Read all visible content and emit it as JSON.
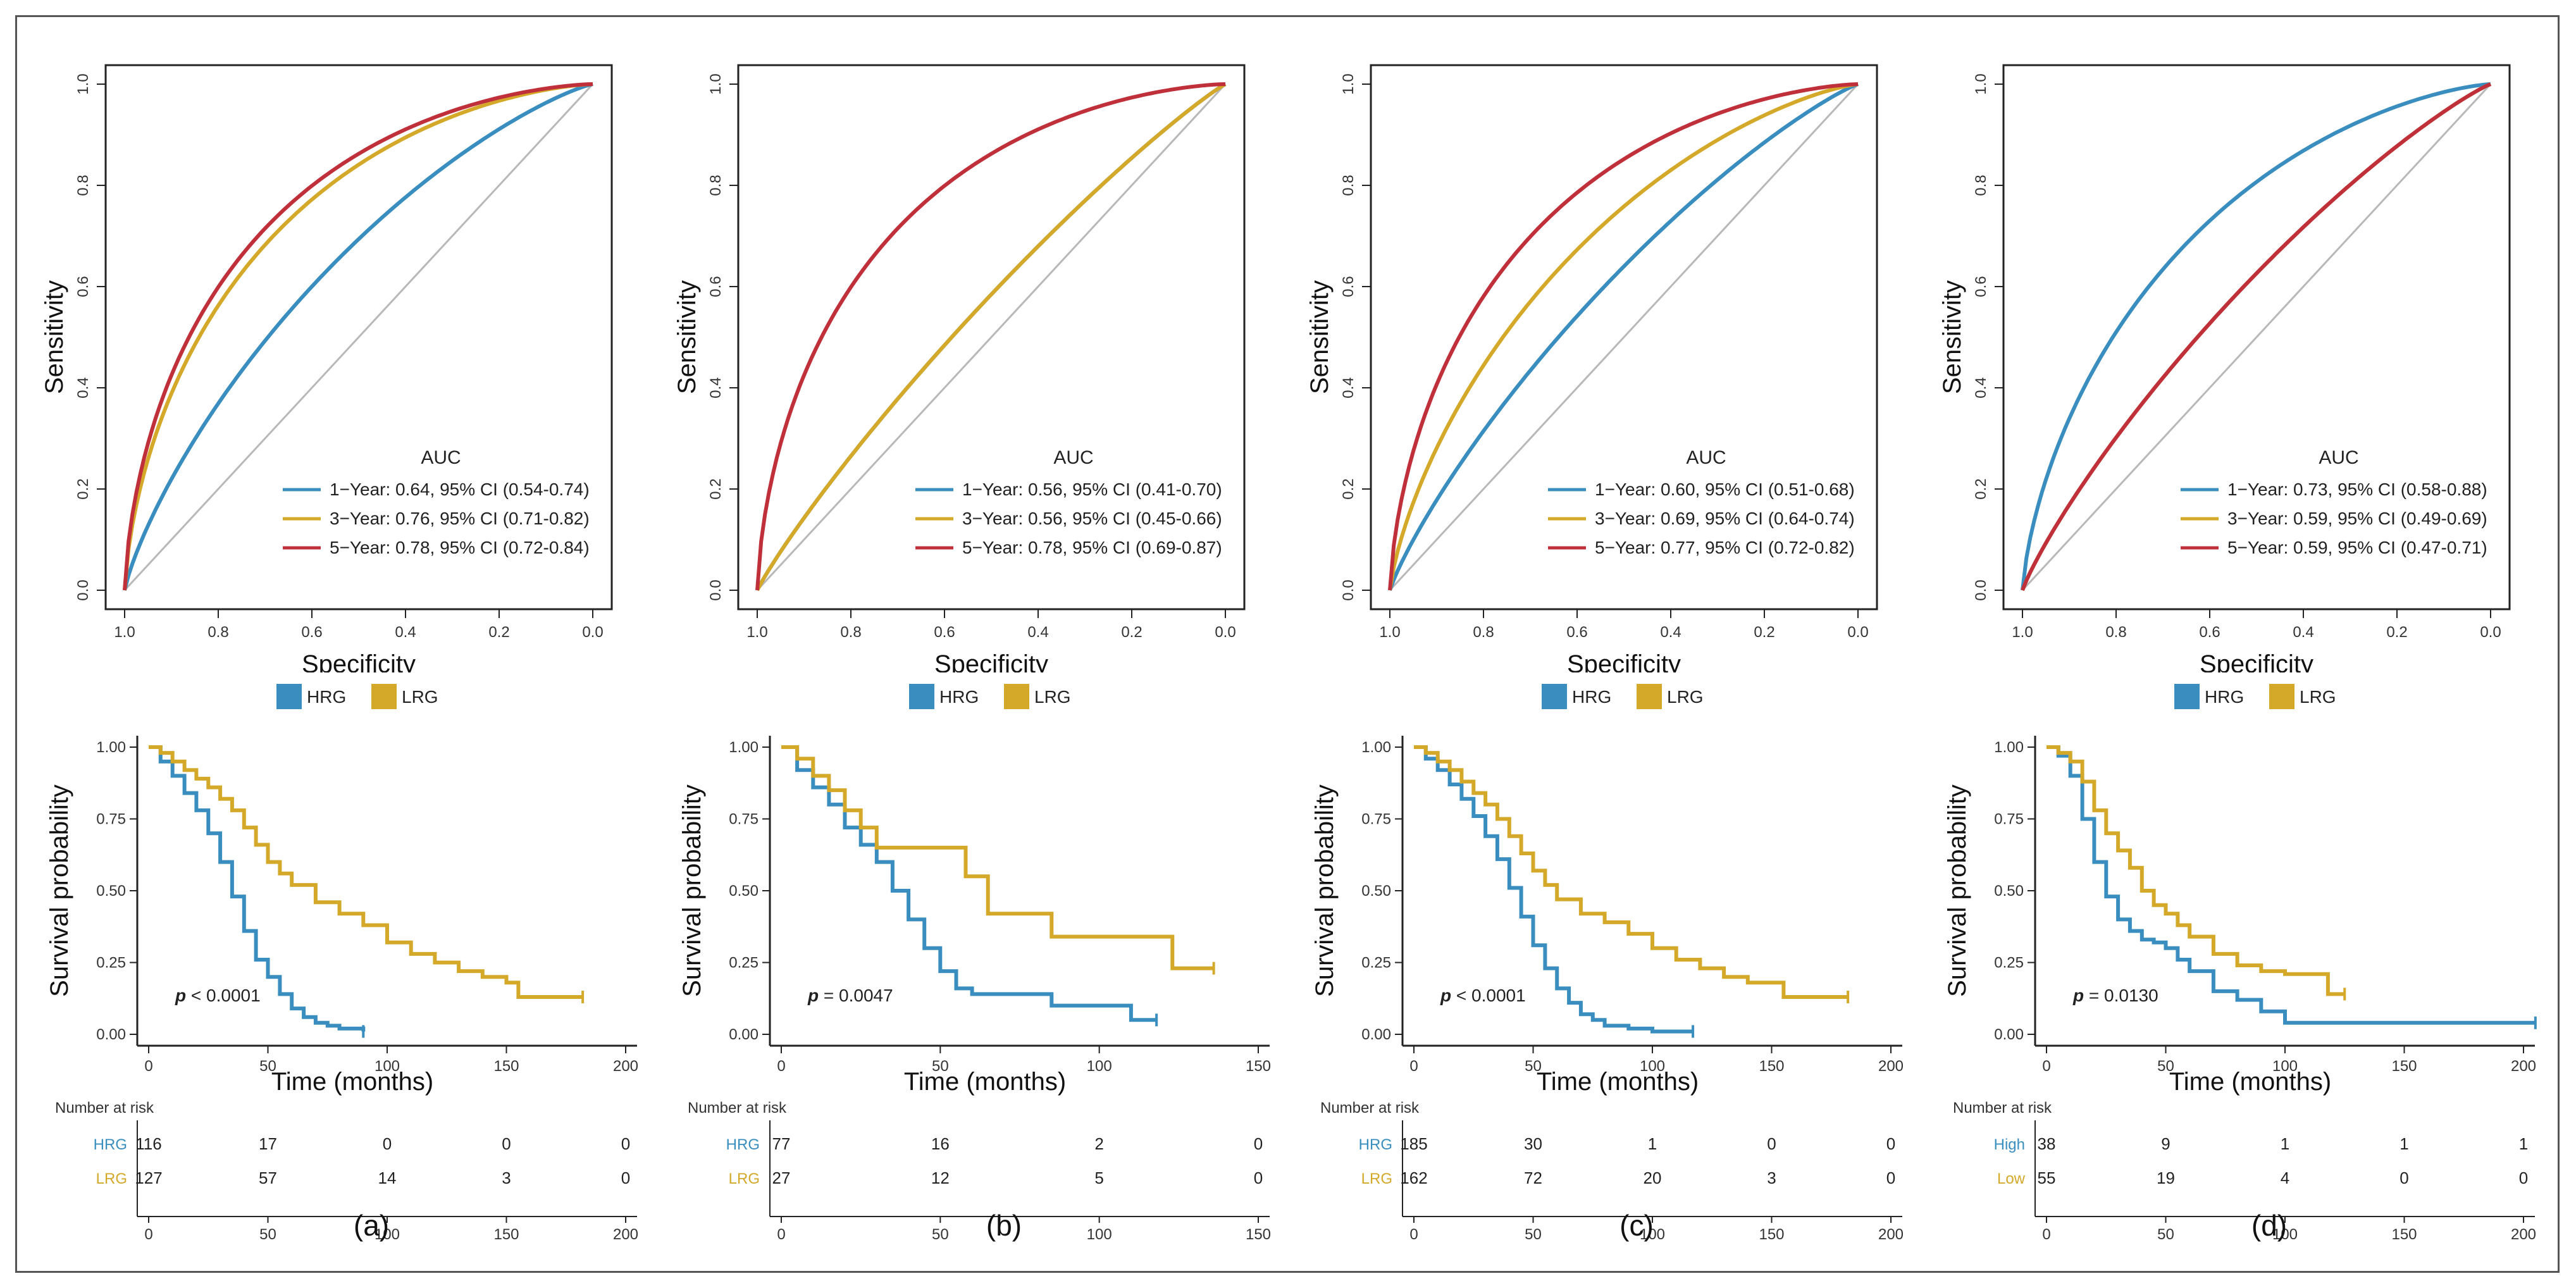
{
  "colors": {
    "blue": "#3a8ebf",
    "gold": "#d4a92a",
    "red": "#c0303a",
    "diag": "#b8b8b8",
    "axis": "#222222"
  },
  "chart_data": [
    {
      "panel": "(a)",
      "roc": {
        "type": "line",
        "xlabel": "Specificity",
        "ylabel": "Sensitivity",
        "xlim": [
          1.0,
          0.0
        ],
        "ylim": [
          0.0,
          1.0
        ],
        "x_ticks": [
          "1.0",
          "0.8",
          "0.6",
          "0.4",
          "0.2",
          "0.0"
        ],
        "y_ticks": [
          "0.0",
          "0.2",
          "0.4",
          "0.6",
          "0.8",
          "1.0"
        ],
        "legend_title": "AUC",
        "series": [
          {
            "name": "1-Year",
            "label": "1−Year: 0.64, 95% CI (0.54-0.74)",
            "auc": 0.64,
            "color": "#3a8ebf"
          },
          {
            "name": "3-Year",
            "label": "3−Year: 0.76, 95% CI (0.71-0.82)",
            "auc": 0.76,
            "color": "#d4a92a"
          },
          {
            "name": "5-Year",
            "label": "5−Year: 0.78, 95% CI (0.72-0.84)",
            "auc": 0.78,
            "color": "#c0303a"
          }
        ]
      },
      "km": {
        "type": "line",
        "xlabel": "Time (months)",
        "ylabel": "Survival probability",
        "xlim": [
          0,
          200
        ],
        "ylim": [
          0,
          1
        ],
        "x_ticks": [
          "0",
          "50",
          "100",
          "150",
          "200"
        ],
        "y_ticks": [
          "0.00",
          "0.25",
          "0.50",
          "0.75",
          "1.00"
        ],
        "legend": [
          "HRG",
          "LRG"
        ],
        "p_label": "p",
        "p_value": " < 0.0001",
        "series": [
          {
            "name": "HRG",
            "color": "#3a8ebf",
            "x": [
              0,
              5,
              10,
              15,
              20,
              25,
              30,
              35,
              40,
              45,
              50,
              55,
              60,
              65,
              70,
              75,
              80,
              90
            ],
            "y": [
              1.0,
              0.95,
              0.9,
              0.84,
              0.78,
              0.7,
              0.6,
              0.48,
              0.36,
              0.26,
              0.2,
              0.14,
              0.09,
              0.06,
              0.04,
              0.03,
              0.02,
              0.01
            ]
          },
          {
            "name": "LRG",
            "color": "#d4a92a",
            "x": [
              0,
              5,
              10,
              15,
              20,
              25,
              30,
              35,
              40,
              45,
              50,
              55,
              60,
              70,
              80,
              90,
              100,
              110,
              120,
              130,
              140,
              150,
              155,
              165,
              182
            ],
            "y": [
              1.0,
              0.98,
              0.95,
              0.92,
              0.89,
              0.86,
              0.82,
              0.78,
              0.72,
              0.66,
              0.6,
              0.56,
              0.52,
              0.46,
              0.42,
              0.38,
              0.32,
              0.28,
              0.25,
              0.22,
              0.2,
              0.18,
              0.13,
              0.13,
              0.13
            ]
          }
        ],
        "risk_table": {
          "title": "Number at risk",
          "rows": [
            {
              "group": "HRG",
              "color": "#3a8ebf",
              "values": [
                "116",
                "17",
                "0",
                "0",
                "0"
              ]
            },
            {
              "group": "LRG",
              "color": "#d4a92a",
              "values": [
                "127",
                "57",
                "14",
                "3",
                "0"
              ]
            }
          ]
        }
      }
    },
    {
      "panel": "(b)",
      "roc": {
        "type": "line",
        "xlabel": "Specificity",
        "ylabel": "Sensitivity",
        "xlim": [
          1.0,
          0.0
        ],
        "ylim": [
          0.0,
          1.0
        ],
        "x_ticks": [
          "1.0",
          "0.8",
          "0.6",
          "0.4",
          "0.2",
          "0.0"
        ],
        "y_ticks": [
          "0.0",
          "0.2",
          "0.4",
          "0.6",
          "0.8",
          "1.0"
        ],
        "legend_title": "AUC",
        "series": [
          {
            "name": "1-Year",
            "label": "1−Year: 0.56, 95% CI (0.41-0.70)",
            "auc": 0.56,
            "color": "#3a8ebf"
          },
          {
            "name": "3-Year",
            "label": "3−Year: 0.56, 95% CI (0.45-0.66)",
            "auc": 0.56,
            "color": "#d4a92a"
          },
          {
            "name": "5-Year",
            "label": "5−Year: 0.78, 95% CI (0.69-0.87)",
            "auc": 0.78,
            "color": "#c0303a"
          }
        ]
      },
      "km": {
        "type": "line",
        "xlabel": "Time (months)",
        "ylabel": "Survival probability",
        "xlim": [
          0,
          150
        ],
        "ylim": [
          0,
          1
        ],
        "x_ticks": [
          "0",
          "50",
          "100",
          "150"
        ],
        "y_ticks": [
          "0.00",
          "0.25",
          "0.50",
          "0.75",
          "1.00"
        ],
        "legend": [
          "HRG",
          "LRG"
        ],
        "p_label": "p",
        "p_value": " = 0.0047",
        "series": [
          {
            "name": "HRG",
            "color": "#3a8ebf",
            "x": [
              0,
              5,
              10,
              15,
              20,
              25,
              30,
              35,
              40,
              45,
              50,
              55,
              60,
              70,
              85,
              100,
              110,
              118
            ],
            "y": [
              1.0,
              0.92,
              0.86,
              0.8,
              0.72,
              0.66,
              0.6,
              0.5,
              0.4,
              0.3,
              0.22,
              0.16,
              0.14,
              0.14,
              0.1,
              0.1,
              0.05,
              0.05
            ]
          },
          {
            "name": "LRG",
            "color": "#d4a92a",
            "x": [
              0,
              5,
              10,
              15,
              20,
              25,
              30,
              55,
              58,
              65,
              85,
              120,
              123,
              136
            ],
            "y": [
              1.0,
              0.96,
              0.9,
              0.85,
              0.78,
              0.72,
              0.65,
              0.65,
              0.55,
              0.42,
              0.34,
              0.34,
              0.23,
              0.23
            ]
          }
        ],
        "risk_table": {
          "title": "Number at risk",
          "rows": [
            {
              "group": "HRG",
              "color": "#3a8ebf",
              "values": [
                "77",
                "16",
                "2",
                "0"
              ]
            },
            {
              "group": "LRG",
              "color": "#d4a92a",
              "values": [
                "27",
                "12",
                "5",
                "0"
              ]
            }
          ]
        }
      }
    },
    {
      "panel": "(c)",
      "roc": {
        "type": "line",
        "xlabel": "Specificity",
        "ylabel": "Sensitivity",
        "xlim": [
          1.0,
          0.0
        ],
        "ylim": [
          0.0,
          1.0
        ],
        "x_ticks": [
          "1.0",
          "0.8",
          "0.6",
          "0.4",
          "0.2",
          "0.0"
        ],
        "y_ticks": [
          "0.0",
          "0.2",
          "0.4",
          "0.6",
          "0.8",
          "1.0"
        ],
        "legend_title": "AUC",
        "series": [
          {
            "name": "1-Year",
            "label": "1−Year: 0.60, 95% CI (0.51-0.68)",
            "auc": 0.6,
            "color": "#3a8ebf"
          },
          {
            "name": "3-Year",
            "label": "3−Year: 0.69, 95% CI (0.64-0.74)",
            "auc": 0.69,
            "color": "#d4a92a"
          },
          {
            "name": "5-Year",
            "label": "5−Year: 0.77, 95% CI (0.72-0.82)",
            "auc": 0.77,
            "color": "#c0303a"
          }
        ]
      },
      "km": {
        "type": "line",
        "xlabel": "Time (months)",
        "ylabel": "Survival probability",
        "xlim": [
          0,
          200
        ],
        "ylim": [
          0,
          1
        ],
        "x_ticks": [
          "0",
          "50",
          "100",
          "150",
          "200"
        ],
        "y_ticks": [
          "0.00",
          "0.25",
          "0.50",
          "0.75",
          "1.00"
        ],
        "legend": [
          "HRG",
          "LRG"
        ],
        "p_label": "p",
        "p_value": " < 0.0001",
        "series": [
          {
            "name": "HRG",
            "color": "#3a8ebf",
            "x": [
              0,
              5,
              10,
              15,
              20,
              25,
              30,
              35,
              40,
              45,
              50,
              55,
              60,
              65,
              70,
              75,
              80,
              90,
              100,
              117
            ],
            "y": [
              1.0,
              0.96,
              0.92,
              0.87,
              0.82,
              0.76,
              0.69,
              0.61,
              0.51,
              0.41,
              0.31,
              0.23,
              0.16,
              0.11,
              0.07,
              0.05,
              0.03,
              0.02,
              0.01,
              0.01
            ]
          },
          {
            "name": "LRG",
            "color": "#d4a92a",
            "x": [
              0,
              5,
              10,
              15,
              20,
              25,
              30,
              35,
              40,
              45,
              50,
              55,
              60,
              70,
              80,
              90,
              100,
              110,
              120,
              130,
              140,
              150,
              155,
              165,
              182
            ],
            "y": [
              1.0,
              0.98,
              0.95,
              0.92,
              0.88,
              0.84,
              0.8,
              0.75,
              0.69,
              0.63,
              0.57,
              0.52,
              0.47,
              0.42,
              0.39,
              0.35,
              0.3,
              0.26,
              0.23,
              0.2,
              0.18,
              0.18,
              0.13,
              0.13,
              0.13
            ]
          }
        ],
        "risk_table": {
          "title": "Number at risk",
          "rows": [
            {
              "group": "HRG",
              "color": "#3a8ebf",
              "values": [
                "185",
                "30",
                "1",
                "0",
                "0"
              ]
            },
            {
              "group": "LRG",
              "color": "#d4a92a",
              "values": [
                "162",
                "72",
                "20",
                "3",
                "0"
              ]
            }
          ]
        }
      }
    },
    {
      "panel": "(d)",
      "roc": {
        "type": "line",
        "xlabel": "Specificity",
        "ylabel": "Sensitivity",
        "xlim": [
          1.0,
          0.0
        ],
        "ylim": [
          0.0,
          1.0
        ],
        "x_ticks": [
          "1.0",
          "0.8",
          "0.6",
          "0.4",
          "0.2",
          "0.0"
        ],
        "y_ticks": [
          "0.0",
          "0.2",
          "0.4",
          "0.6",
          "0.8",
          "1.0"
        ],
        "legend_title": "AUC",
        "series": [
          {
            "name": "1-Year",
            "label": "1−Year: 0.73, 95% CI (0.58-0.88)",
            "auc": 0.73,
            "color": "#3a8ebf"
          },
          {
            "name": "3-Year",
            "label": "3−Year: 0.59, 95% CI (0.49-0.69)",
            "auc": 0.59,
            "color": "#d4a92a"
          },
          {
            "name": "5-Year",
            "label": "5−Year: 0.59, 95% CI (0.47-0.71)",
            "auc": 0.59,
            "color": "#c0303a"
          }
        ]
      },
      "km": {
        "type": "line",
        "xlabel": "Time (months)",
        "ylabel": "Survival probability",
        "xlim": [
          0,
          200
        ],
        "ylim": [
          0,
          1
        ],
        "x_ticks": [
          "0",
          "50",
          "100",
          "150",
          "200"
        ],
        "y_ticks": [
          "0.00",
          "0.25",
          "0.50",
          "0.75",
          "1.00"
        ],
        "legend": [
          "HRG",
          "LRG"
        ],
        "p_label": "p",
        "p_value": " = 0.0130",
        "series": [
          {
            "name": "HRG",
            "color": "#3a8ebf",
            "x": [
              0,
              5,
              10,
              15,
              20,
              25,
              30,
              35,
              40,
              45,
              50,
              55,
              60,
              70,
              80,
              90,
              100,
              110,
              150,
              205
            ],
            "y": [
              1.0,
              0.97,
              0.9,
              0.75,
              0.6,
              0.48,
              0.4,
              0.36,
              0.33,
              0.32,
              0.3,
              0.26,
              0.22,
              0.15,
              0.12,
              0.08,
              0.04,
              0.04,
              0.04,
              0.04
            ]
          },
          {
            "name": "LRG",
            "color": "#d4a92a",
            "x": [
              0,
              5,
              10,
              15,
              20,
              25,
              30,
              35,
              40,
              45,
              50,
              55,
              60,
              70,
              80,
              90,
              100,
              110,
              118,
              125
            ],
            "y": [
              1.0,
              0.98,
              0.95,
              0.88,
              0.78,
              0.7,
              0.64,
              0.58,
              0.5,
              0.45,
              0.42,
              0.38,
              0.34,
              0.28,
              0.24,
              0.22,
              0.21,
              0.21,
              0.14,
              0.14
            ]
          }
        ],
        "risk_table": {
          "title": "Number at risk",
          "rows": [
            {
              "group": "High",
              "color": "#3a8ebf",
              "values": [
                "38",
                "9",
                "1",
                "1",
                "1"
              ]
            },
            {
              "group": "Low",
              "color": "#d4a92a",
              "values": [
                "55",
                "19",
                "4",
                "0",
                "0"
              ]
            }
          ]
        }
      }
    }
  ]
}
